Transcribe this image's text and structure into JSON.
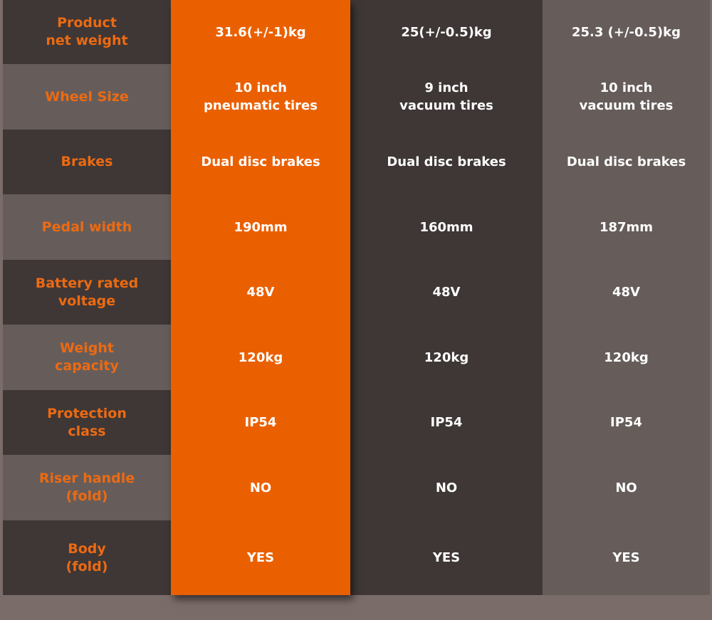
{
  "colors": {
    "accent": "#ea6000",
    "label_text": "#ec6a12",
    "dark_row": "#3e3736",
    "light_row": "#665d5b",
    "background": "#7a6c69"
  },
  "rows": [
    {
      "label": "Product\nnet weight",
      "a": "31.6(+/-1)kg",
      "b": "25(+/-0.5)kg",
      "c": "25.3 (+/-0.5)kg"
    },
    {
      "label": "Wheel Size",
      "a": "10 inch\npneumatic tires",
      "b": "9 inch\nvacuum tires",
      "c": "10 inch\nvacuum tires"
    },
    {
      "label": "Brakes",
      "a": "Dual disc brakes",
      "b": "Dual disc brakes",
      "c": "Dual disc brakes"
    },
    {
      "label": "Pedal width",
      "a": "190mm",
      "b": "160mm",
      "c": "187mm"
    },
    {
      "label": "Battery rated\nvoltage",
      "a": "48V",
      "b": "48V",
      "c": "48V"
    },
    {
      "label": "Weight\ncapacity",
      "a": "120kg",
      "b": "120kg",
      "c": "120kg"
    },
    {
      "label": "Protection\nclass",
      "a": "IP54",
      "b": "IP54",
      "c": "IP54"
    },
    {
      "label": "Riser handle\n(fold)",
      "a": "NO",
      "b": "NO",
      "c": "NO"
    },
    {
      "label": "Body\n(fold)",
      "a": "YES",
      "b": "YES",
      "c": "YES"
    }
  ]
}
